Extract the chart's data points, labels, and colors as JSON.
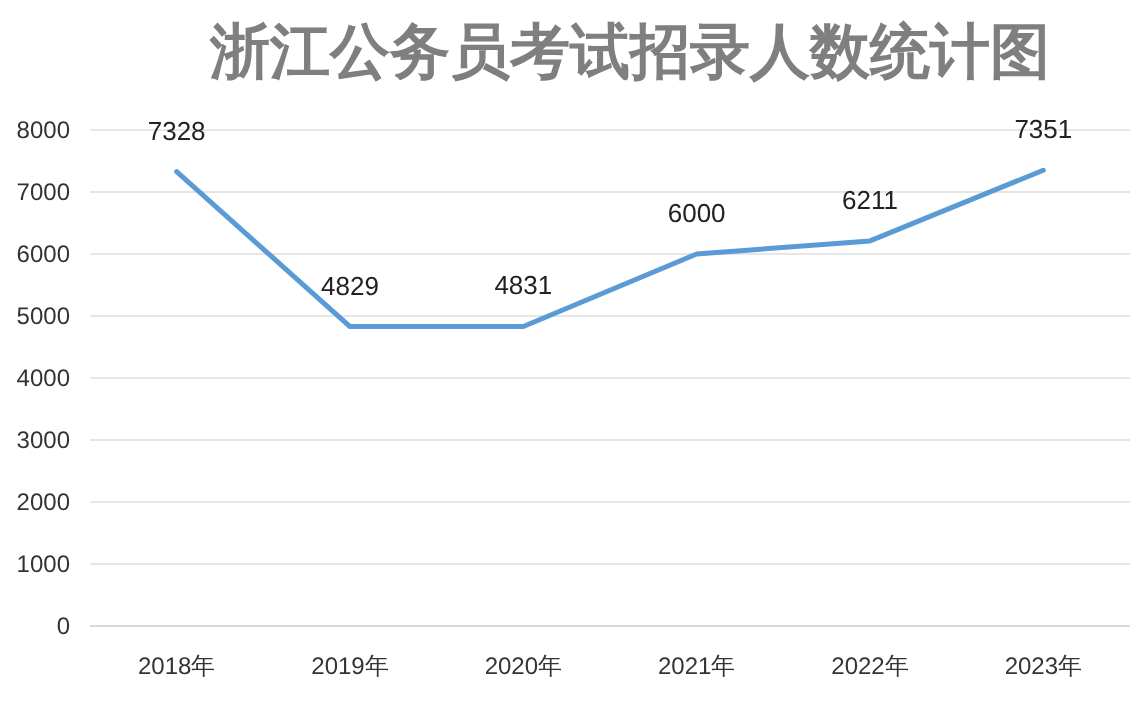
{
  "chart_data": {
    "type": "line",
    "title": "浙江公务员考试招录人数统计图",
    "categories": [
      "2018年",
      "2019年",
      "2020年",
      "2021年",
      "2022年",
      "2023年"
    ],
    "series": [
      {
        "color": "#5b9bd5",
        "values": [
          7328,
          4829,
          4831,
          6000,
          6211,
          7351
        ]
      }
    ],
    "ylim": [
      0,
      8000
    ],
    "yticks": [
      0,
      1000,
      2000,
      3000,
      4000,
      5000,
      6000,
      7000,
      8000
    ],
    "grid": "y",
    "data_labels": true
  }
}
